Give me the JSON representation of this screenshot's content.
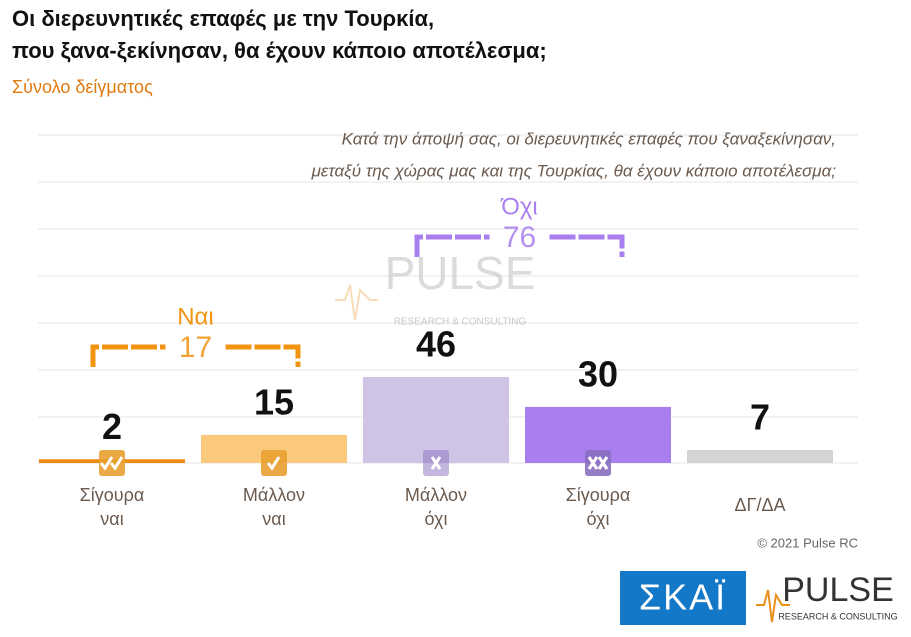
{
  "chart_data": {
    "type": "bar",
    "title": [
      "Οι διερευνητικές επαφές με την Τουρκία,",
      "που ξανα-ξεκίνησαν, θα έχουν κάποιο αποτέλεσμα;"
    ],
    "subtitle": "Σύνολο δείγματος",
    "question": [
      "Κατά την άποψή σας, οι διερευνητικές επαφές που ξαναξεκίνησαν,",
      "μεταξύ της χώρας μας και της Τουρκίας, θα έχουν κάποιο αποτέλεσμα;"
    ],
    "categories": [
      "Σίγουρα ναι",
      "Μάλλον ναι",
      "Μάλλον όχι",
      "Σίγουρα όχι",
      "ΔΓ/ΔΑ"
    ],
    "values": [
      2,
      15,
      46,
      30,
      7
    ],
    "colors": [
      "#ee8a10",
      "#fbc97c",
      "#cfc4e6",
      "#a97ff0",
      "#d4d4d4"
    ],
    "groups": [
      {
        "name": "Ναι",
        "value": 17,
        "color": "#f29412"
      },
      {
        "name": "Όχι",
        "value": 76,
        "color": "#a97ff0"
      }
    ]
  },
  "watermark": {
    "name": "PULSE",
    "tagline": "RESEARCH & CONSULTING"
  },
  "copyright": "© 2021 Pulse RC",
  "logos": {
    "skai": "ΣΚΑΪ",
    "pulse": "PULSE",
    "pulse_tagline": "RESEARCH & CONSULTING"
  }
}
